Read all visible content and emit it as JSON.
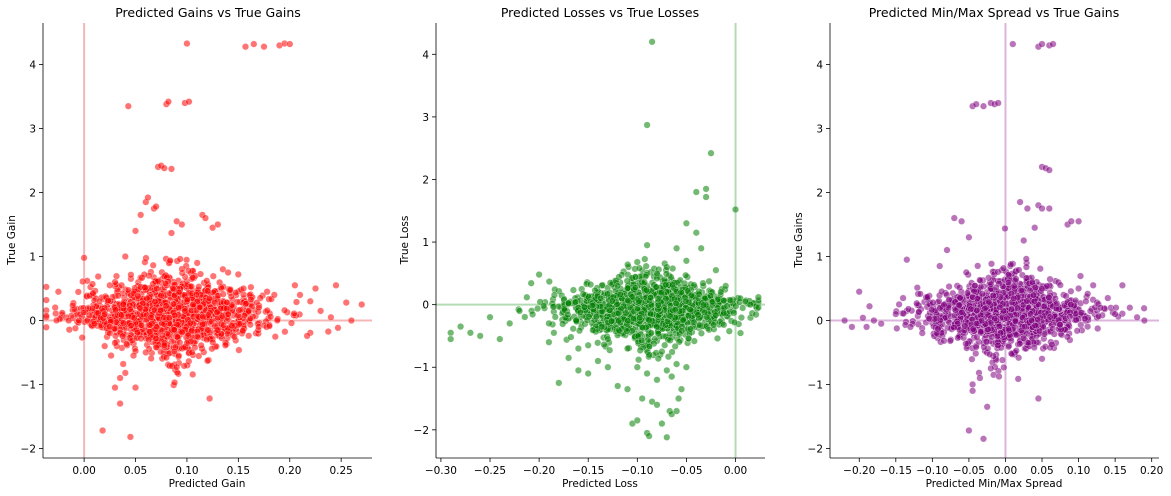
{
  "chart_data": [
    {
      "type": "scatter",
      "title": "Predicted Gains vs True Gains",
      "xlabel": "Predicted Gain",
      "ylabel": "True Gain",
      "xlim": [
        -0.04,
        0.28
      ],
      "ylim": [
        -2.15,
        4.65
      ],
      "xticks": [
        0.0,
        0.05,
        0.1,
        0.15,
        0.2,
        0.25
      ],
      "xtick_labels": [
        "0.00",
        "0.05",
        "0.10",
        "0.15",
        "0.20",
        "0.25"
      ],
      "yticks": [
        -2,
        -1,
        0,
        1,
        2,
        3,
        4
      ],
      "ytick_labels": [
        "−2",
        "−1",
        "0",
        "1",
        "2",
        "3",
        "4"
      ],
      "color": "#ff0000",
      "refline_color": "#f4b6b6",
      "vline": 0.0,
      "hline": 0.0,
      "points": [
        [
          -0.025,
          0.45
        ],
        [
          -0.015,
          0.0
        ],
        [
          -0.005,
          0.0
        ],
        [
          0.0,
          0.98
        ],
        [
          0.003,
          0.62
        ],
        [
          0.005,
          0.08
        ],
        [
          0.01,
          -0.05
        ],
        [
          0.015,
          0.3
        ],
        [
          0.02,
          0.1
        ],
        [
          0.025,
          0.55
        ],
        [
          0.03,
          -0.35
        ],
        [
          0.03,
          0.6
        ],
        [
          0.035,
          -0.9
        ],
        [
          0.035,
          -1.3
        ],
        [
          0.04,
          -0.82
        ],
        [
          0.04,
          1.0
        ],
        [
          0.043,
          3.35
        ],
        [
          0.045,
          -1.82
        ],
        [
          0.048,
          -0.55
        ],
        [
          0.05,
          1.4
        ],
        [
          0.05,
          -1.05
        ],
        [
          0.055,
          1.65
        ],
        [
          0.06,
          1.85
        ],
        [
          0.062,
          1.92
        ],
        [
          0.065,
          0.05
        ],
        [
          0.068,
          1.75
        ],
        [
          0.07,
          1.78
        ],
        [
          0.072,
          2.4
        ],
        [
          0.075,
          2.42
        ],
        [
          0.078,
          2.38
        ],
        [
          0.08,
          3.38
        ],
        [
          0.082,
          3.42
        ],
        [
          0.085,
          2.37
        ],
        [
          0.088,
          -0.97
        ],
        [
          0.09,
          1.55
        ],
        [
          0.092,
          -0.55
        ],
        [
          0.095,
          1.5
        ],
        [
          0.098,
          3.4
        ],
        [
          0.1,
          4.33
        ],
        [
          0.102,
          3.42
        ],
        [
          0.105,
          -0.5
        ],
        [
          0.11,
          0.9
        ],
        [
          0.115,
          1.65
        ],
        [
          0.118,
          1.6
        ],
        [
          0.12,
          -0.63
        ],
        [
          0.122,
          -1.22
        ],
        [
          0.125,
          1.45
        ],
        [
          0.13,
          1.5
        ],
        [
          0.135,
          0.8
        ],
        [
          0.14,
          0.75
        ],
        [
          0.15,
          0.72
        ],
        [
          0.155,
          0.5
        ],
        [
          0.157,
          4.28
        ],
        [
          0.165,
          4.32
        ],
        [
          0.175,
          4.28
        ],
        [
          0.178,
          0.45
        ],
        [
          0.185,
          0.4
        ],
        [
          0.19,
          4.3
        ],
        [
          0.195,
          4.33
        ],
        [
          0.2,
          4.32
        ],
        [
          0.205,
          0.55
        ],
        [
          0.21,
          0.4
        ],
        [
          0.22,
          0.3
        ],
        [
          0.225,
          0.5
        ],
        [
          0.23,
          0.15
        ],
        [
          0.24,
          0.05
        ],
        [
          0.245,
          0.55
        ],
        [
          0.255,
          0.28
        ],
        [
          0.26,
          0.0
        ],
        [
          0.27,
          0.25
        ],
        [
          0.018,
          -1.72
        ],
        [
          0.02,
          -0.4
        ],
        [
          0.025,
          -0.2
        ],
        [
          0.03,
          -1.05
        ],
        [
          0.038,
          -0.68
        ],
        [
          0.06,
          -0.5
        ],
        [
          0.07,
          -0.42
        ],
        [
          0.08,
          -0.58
        ],
        [
          0.1,
          -0.35
        ],
        [
          0.11,
          -0.25
        ],
        [
          0.13,
          -0.15
        ],
        [
          0.14,
          0.1
        ],
        [
          0.16,
          0.15
        ],
        [
          0.17,
          0.2
        ]
      ],
      "cloud": {
        "x_mean": 0.085,
        "x_spread": 0.045,
        "y_mean": 0.1,
        "y_spread": 0.25,
        "count": 1300
      }
    },
    {
      "type": "scatter",
      "title": "Predicted Losses vs True Losses",
      "xlabel": "Predicted Loss",
      "ylabel": "True Loss",
      "xlim": [
        -0.305,
        0.03
      ],
      "ylim": [
        -2.45,
        4.5
      ],
      "xticks": [
        -0.3,
        -0.25,
        -0.2,
        -0.15,
        -0.1,
        -0.05,
        0.0
      ],
      "xtick_labels": [
        "−0.30",
        "−0.25",
        "−0.20",
        "−0.15",
        "−0.10",
        "−0.05",
        "0.00"
      ],
      "yticks": [
        -2,
        -1,
        0,
        1,
        2,
        3,
        4
      ],
      "ytick_labels": [
        "−2",
        "−1",
        "0",
        "1",
        "2",
        "3",
        "4"
      ],
      "color": "#008000",
      "refline_color": "#b4dcb4",
      "vline": 0.0,
      "hline": 0.0,
      "points": [
        [
          -0.29,
          -0.45
        ],
        [
          -0.29,
          -0.55
        ],
        [
          -0.28,
          -0.35
        ],
        [
          -0.27,
          -0.45
        ],
        [
          -0.26,
          -0.5
        ],
        [
          -0.25,
          -0.2
        ],
        [
          -0.24,
          -0.55
        ],
        [
          -0.23,
          -0.3
        ],
        [
          -0.22,
          -0.1
        ],
        [
          -0.2,
          0.48
        ],
        [
          -0.19,
          -0.6
        ],
        [
          -0.185,
          -0.45
        ],
        [
          -0.18,
          -1.25
        ],
        [
          -0.17,
          -0.85
        ],
        [
          -0.16,
          -1.05
        ],
        [
          -0.15,
          -1.1
        ],
        [
          -0.14,
          -0.9
        ],
        [
          -0.13,
          -1.0
        ],
        [
          -0.12,
          -1.3
        ],
        [
          -0.11,
          -1.35
        ],
        [
          -0.105,
          -1.9
        ],
        [
          -0.1,
          -1.85
        ],
        [
          -0.095,
          -1.5
        ],
        [
          -0.09,
          -2.05
        ],
        [
          -0.088,
          -2.1
        ],
        [
          -0.085,
          -1.55
        ],
        [
          -0.08,
          -1.6
        ],
        [
          -0.075,
          -1.9
        ],
        [
          -0.07,
          -2.12
        ],
        [
          -0.067,
          -1.7
        ],
        [
          -0.065,
          -1.75
        ],
        [
          -0.06,
          -1.7
        ],
        [
          -0.058,
          -1.5
        ],
        [
          -0.055,
          -1.35
        ],
        [
          -0.09,
          2.87
        ],
        [
          -0.085,
          4.2
        ],
        [
          -0.04,
          1.8
        ],
        [
          -0.03,
          1.85
        ],
        [
          -0.025,
          2.42
        ],
        [
          -0.03,
          1.72
        ],
        [
          -0.05,
          1.3
        ],
        [
          -0.04,
          1.15
        ],
        [
          -0.035,
          0.9
        ],
        [
          -0.02,
          0.55
        ],
        [
          -0.015,
          0.2
        ],
        [
          -0.01,
          0.3
        ],
        [
          0.0,
          1.52
        ],
        [
          0.005,
          0.1
        ],
        [
          0.01,
          0.05
        ],
        [
          0.015,
          0.0
        ],
        [
          -0.1,
          0.68
        ],
        [
          -0.09,
          0.95
        ],
        [
          -0.08,
          0.5
        ],
        [
          -0.07,
          0.6
        ],
        [
          -0.06,
          0.9
        ],
        [
          -0.05,
          0.7
        ],
        [
          -0.12,
          0.3
        ],
        [
          -0.13,
          -0.55
        ],
        [
          -0.11,
          -0.7
        ],
        [
          -0.1,
          -1.0
        ],
        [
          -0.09,
          -1.1
        ],
        [
          -0.08,
          -1.2
        ],
        [
          -0.07,
          -1.05
        ],
        [
          -0.05,
          -1.0
        ],
        [
          -0.06,
          -0.95
        ],
        [
          -0.065,
          -1.15
        ],
        [
          -0.075,
          -0.75
        ],
        [
          -0.15,
          -0.65
        ],
        [
          -0.16,
          -0.7
        ],
        [
          -0.19,
          -0.3
        ]
      ],
      "cloud": {
        "x_mean": -0.09,
        "x_spread": 0.045,
        "y_mean": -0.08,
        "y_spread": 0.22,
        "count": 1300
      }
    },
    {
      "type": "scatter",
      "title": "Predicted Min/Max Spread vs True Gains",
      "xlabel": "Predicted Min/Max Spread",
      "ylabel": "True Gains",
      "xlim": [
        -0.24,
        0.21
      ],
      "ylim": [
        -2.15,
        4.65
      ],
      "xticks": [
        -0.2,
        -0.15,
        -0.1,
        -0.05,
        0.0,
        0.05,
        0.1,
        0.15,
        0.2
      ],
      "xtick_labels": [
        "−0.20",
        "−0.15",
        "−0.10",
        "−0.05",
        "0.00",
        "0.05",
        "0.10",
        "0.15",
        "0.20"
      ],
      "yticks": [
        -2,
        -1,
        0,
        1,
        2,
        3,
        4
      ],
      "ytick_labels": [
        "−2",
        "−1",
        "0",
        "1",
        "2",
        "3",
        "4"
      ],
      "color": "#800080",
      "refline_color": "#dcb4dc",
      "vline": 0.0,
      "hline": 0.0,
      "points": [
        [
          -0.22,
          0.0
        ],
        [
          -0.21,
          -0.1
        ],
        [
          -0.2,
          0.45
        ],
        [
          -0.19,
          -0.1
        ],
        [
          -0.18,
          0.0
        ],
        [
          -0.17,
          -0.05
        ],
        [
          -0.15,
          0.1
        ],
        [
          -0.14,
          0.35
        ],
        [
          -0.13,
          -0.1
        ],
        [
          -0.135,
          0.95
        ],
        [
          -0.09,
          0.85
        ],
        [
          -0.08,
          1.1
        ],
        [
          -0.07,
          1.6
        ],
        [
          -0.06,
          1.55
        ],
        [
          -0.05,
          1.3
        ],
        [
          -0.045,
          3.35
        ],
        [
          -0.04,
          3.38
        ],
        [
          -0.03,
          3.35
        ],
        [
          -0.02,
          3.4
        ],
        [
          -0.015,
          3.38
        ],
        [
          -0.01,
          3.4
        ],
        [
          0.01,
          4.32
        ],
        [
          0.045,
          4.28
        ],
        [
          0.05,
          4.32
        ],
        [
          0.06,
          4.3
        ],
        [
          0.065,
          4.32
        ],
        [
          0.05,
          2.4
        ],
        [
          0.055,
          2.38
        ],
        [
          0.06,
          2.35
        ],
        [
          0.045,
          1.8
        ],
        [
          0.05,
          1.75
        ],
        [
          0.06,
          1.75
        ],
        [
          0.085,
          1.5
        ],
        [
          0.09,
          1.55
        ],
        [
          0.1,
          1.55
        ],
        [
          0.02,
          1.85
        ],
        [
          0.03,
          1.75
        ],
        [
          0.04,
          1.45
        ],
        [
          0.025,
          1.25
        ],
        [
          -0.03,
          -1.85
        ],
        [
          -0.045,
          -1.0
        ],
        [
          -0.045,
          -1.1
        ],
        [
          -0.05,
          -1.72
        ],
        [
          -0.025,
          -1.35
        ],
        [
          -0.035,
          -0.9
        ],
        [
          -0.02,
          -0.75
        ],
        [
          0.045,
          -1.22
        ],
        [
          0.05,
          -0.6
        ],
        [
          0.11,
          0.3
        ],
        [
          0.13,
          0.2
        ],
        [
          0.14,
          0.35
        ],
        [
          0.15,
          0.1
        ],
        [
          0.16,
          0.55
        ],
        [
          0.17,
          0.2
        ],
        [
          0.18,
          0.05
        ],
        [
          0.19,
          0.0
        ],
        [
          0.1,
          0.5
        ],
        [
          0.12,
          0.55
        ]
      ],
      "cloud": {
        "x_mean": 0.0,
        "x_spread": 0.055,
        "y_mean": 0.1,
        "y_spread": 0.25,
        "count": 1300
      }
    }
  ]
}
